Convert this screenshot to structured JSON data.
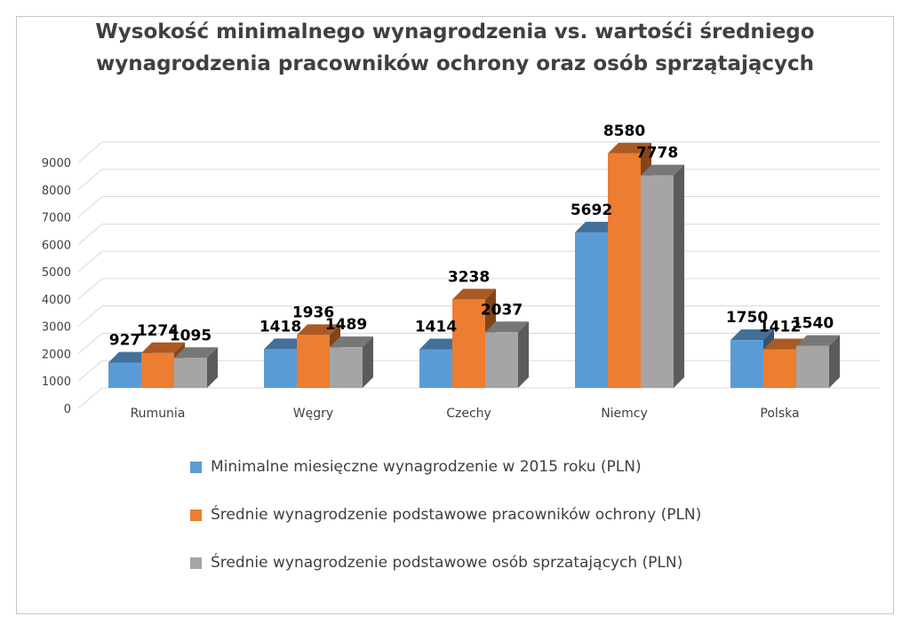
{
  "chart_data": {
    "type": "bar",
    "title": [
      "Wysokość minimalnego wynagrodzenia vs. wartośći średniego",
      "wynagrodzenia pracowników ochrony oraz osób sprzątających"
    ],
    "categories": [
      "Rumunia",
      "Węgry",
      "Czechy",
      "Niemcy",
      "Polska"
    ],
    "series": [
      {
        "name": "Minimalne miesięczne wynagrodzenie w 2015 roku (PLN)",
        "color": "#5b9bd5",
        "values": [
          927,
          1418,
          1414,
          5692,
          1750
        ]
      },
      {
        "name": "Średnie wynagrodzenie podstawowe pracowników ochrony (PLN)",
        "color": "#ed7d31",
        "values": [
          1274,
          1936,
          3238,
          8580,
          1412
        ]
      },
      {
        "name": "Średnie wynagrodzenie podstawowe osób sprzatających (PLN)",
        "color": "#a5a5a5",
        "values": [
          1095,
          1489,
          2037,
          7778,
          1540
        ]
      }
    ],
    "yticks": [
      0,
      1000,
      2000,
      3000,
      4000,
      5000,
      6000,
      7000,
      8000,
      9000
    ],
    "ylim": [
      0,
      9000
    ],
    "grid": true,
    "legend": "bottom",
    "style": "3d-clustered-column"
  }
}
